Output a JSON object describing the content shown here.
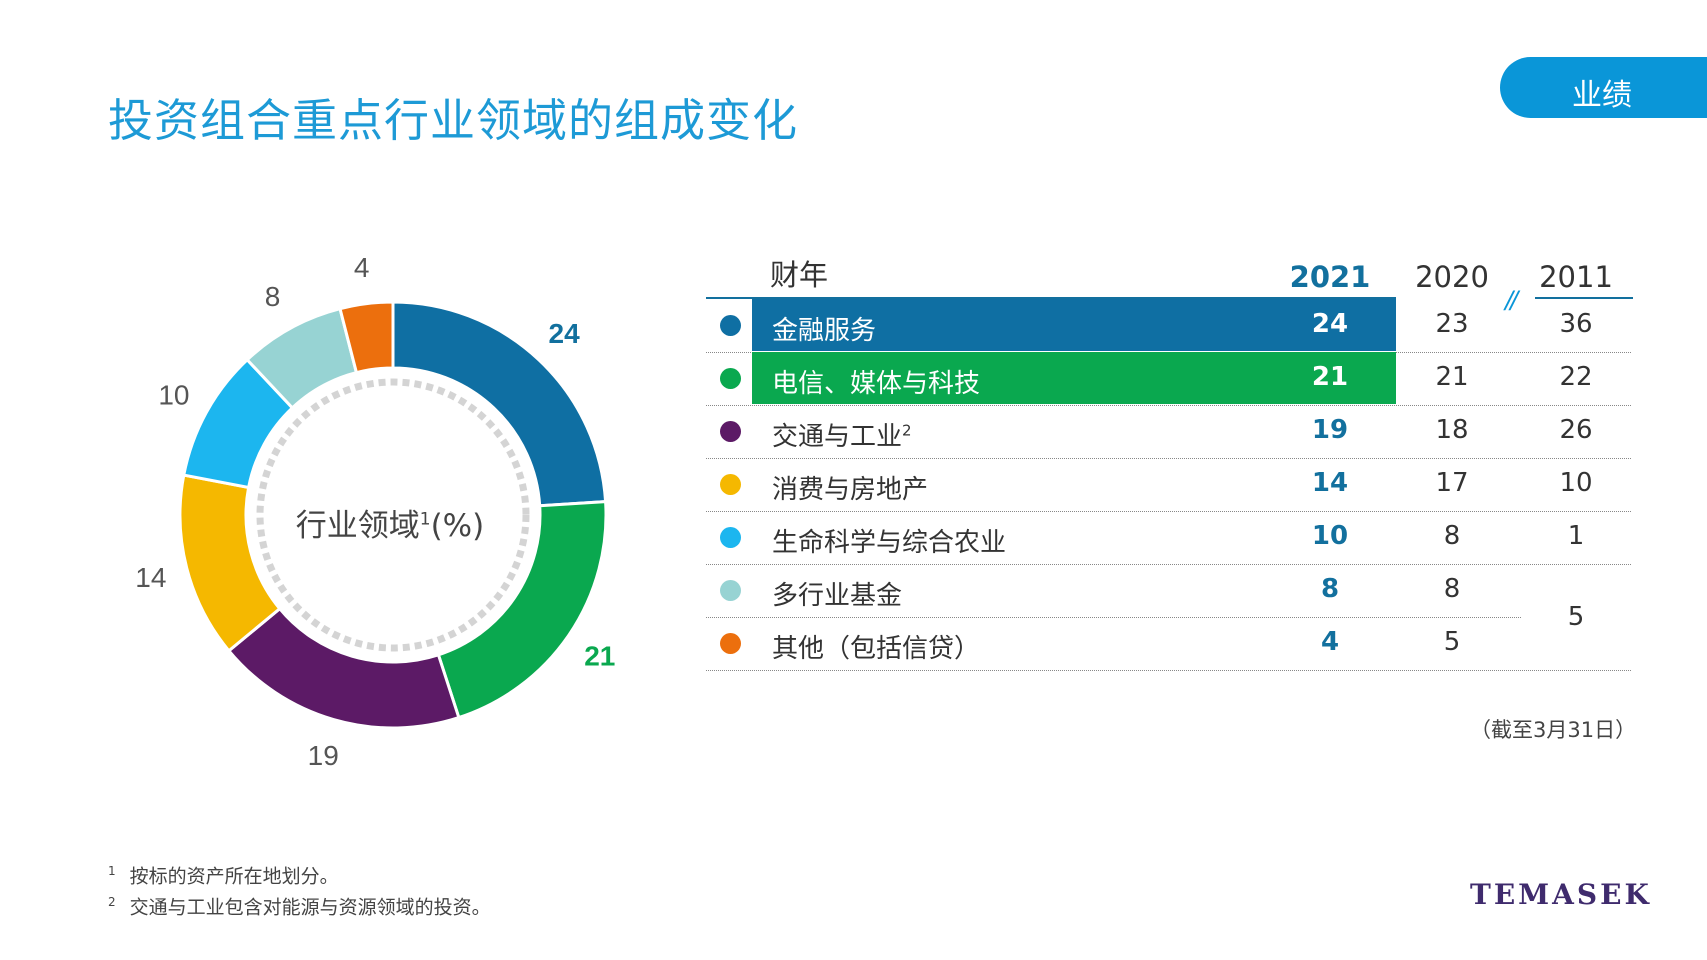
{
  "header": {
    "title": "投资组合重点行业领域的组成变化",
    "section_tab": "业绩"
  },
  "donut": {
    "center_label": "行业领域",
    "center_sup": "1",
    "center_unit": "(%)"
  },
  "table": {
    "fy_label": "财年",
    "years": [
      "2021",
      "2020",
      "2011"
    ],
    "break_mark": "//",
    "rows": [
      {
        "label": "金融服务",
        "sup": "",
        "color": "#0f6fa3",
        "v2021": "24",
        "v2020": "23",
        "v2011": "36"
      },
      {
        "label": "电信、媒体与科技",
        "sup": "",
        "color": "#0aa84f",
        "v2021": "21",
        "v2020": "21",
        "v2011": "22"
      },
      {
        "label": "交通与工业",
        "sup": "2",
        "color": "#5c1a66",
        "v2021": "19",
        "v2020": "18",
        "v2011": "26"
      },
      {
        "label": "消费与房地产",
        "sup": "",
        "color": "#f5b800",
        "v2021": "14",
        "v2020": "17",
        "v2011": "10"
      },
      {
        "label": "生命科学与综合农业",
        "sup": "",
        "color": "#1cb6ef",
        "v2021": "10",
        "v2020": "8",
        "v2011": "1"
      },
      {
        "label": "多行业基金",
        "sup": "",
        "color": "#97d3d3",
        "v2021": "8",
        "v2020": "8",
        "v2011": ""
      },
      {
        "label": "其他（包括信贷）",
        "sup": "",
        "color": "#ec6f0d",
        "v2021": "4",
        "v2020": "5",
        "v2011": ""
      }
    ],
    "merged_2011": "5",
    "as_of": "（截至3月31日）"
  },
  "footnotes": [
    {
      "num": "1",
      "text": "按标的资产所在地划分。"
    },
    {
      "num": "2",
      "text": "交通与工业包含对能源与资源领域的投资。"
    }
  ],
  "logo": "TEMASEK",
  "chart_data": {
    "type": "pie",
    "title": "行业领域1 (%)",
    "categories": [
      "金融服务",
      "电信、媒体与科技",
      "交通与工业",
      "消费与房地产",
      "生命科学与综合农业",
      "多行业基金",
      "其他（包括信贷）"
    ],
    "values": [
      24,
      21,
      19,
      14,
      10,
      8,
      4
    ],
    "colors": [
      "#0f6fa3",
      "#0aa84f",
      "#5c1a66",
      "#f5b800",
      "#1cb6ef",
      "#97d3d3",
      "#ec6f0d"
    ],
    "label_colors": [
      "#12709e",
      "#0aa84f",
      "#555555",
      "#555555",
      "#555555",
      "#555555",
      "#555555"
    ],
    "label_bold": [
      true,
      true,
      false,
      false,
      false,
      false,
      false
    ]
  }
}
